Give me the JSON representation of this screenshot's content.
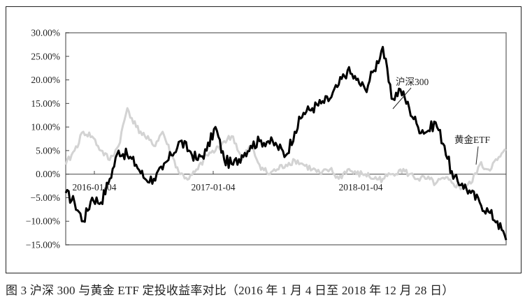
{
  "caption": "图 3  沪深 300 与黄金 ETF 定投收益率对比（2016 年 1 月 4 日至 2018 年 12 月 28 日）",
  "colors": {
    "hs300": "#000000",
    "gold_etf": "#d3d3d3",
    "axis": "#7f7f7f",
    "frame": "#222222"
  },
  "chart_data": {
    "type": "line",
    "title": "沪深 300 与黄金 ETF 定投收益率对比（2016 年 1 月 4 日至 2018 年 12 月 28 日）",
    "figure_label": "图 3",
    "xlabel": "",
    "ylabel": "",
    "ylim": [
      -0.15,
      0.3
    ],
    "yticks": [
      "30.00%",
      "25.00%",
      "20.00%",
      "15.00%",
      "10.00%",
      "5.00%",
      "0.00%",
      "-5.00%",
      "-10.00%",
      "-15.00%"
    ],
    "xticks": [
      "2016-01-04",
      "2017-01-04",
      "2018-01-04"
    ],
    "grid": false,
    "legend": "inline annotations",
    "annotations": [
      {
        "text": "沪深300",
        "series": "hs300"
      },
      {
        "text": "黄金ETF",
        "series": "gold_etf"
      }
    ],
    "x_index_note": "Approximate relative positions (0 = start, 1 = end) read off the plot",
    "x": [
      0.0,
      0.02,
      0.04,
      0.06,
      0.08,
      0.1,
      0.12,
      0.14,
      0.16,
      0.18,
      0.2,
      0.22,
      0.24,
      0.26,
      0.28,
      0.3,
      0.32,
      0.34,
      0.36,
      0.38,
      0.4,
      0.42,
      0.44,
      0.46,
      0.48,
      0.5,
      0.52,
      0.54,
      0.56,
      0.58,
      0.6,
      0.62,
      0.64,
      0.66,
      0.68,
      0.7,
      0.72,
      0.74,
      0.76,
      0.78,
      0.8,
      0.82,
      0.84,
      0.86,
      0.88,
      0.9,
      0.92,
      0.94,
      0.96,
      0.98,
      1.0
    ],
    "series": [
      {
        "name": "沪深300",
        "values": [
          -0.04,
          -0.06,
          -0.1,
          -0.05,
          -0.06,
          -0.01,
          0.05,
          0.04,
          0.02,
          -0.01,
          -0.01,
          0.01,
          0.04,
          0.07,
          0.05,
          0.03,
          0.05,
          0.1,
          0.03,
          0.02,
          0.04,
          0.06,
          0.07,
          0.07,
          0.06,
          0.04,
          0.09,
          0.13,
          0.14,
          0.15,
          0.16,
          0.19,
          0.22,
          0.2,
          0.18,
          0.22,
          0.27,
          0.16,
          0.18,
          0.14,
          0.1,
          0.09,
          0.11,
          0.06,
          -0.01,
          -0.02,
          -0.04,
          -0.06,
          -0.08,
          -0.1,
          -0.14
        ]
      },
      {
        "name": "黄金ETF",
        "values": [
          0.02,
          0.05,
          0.09,
          0.08,
          0.05,
          0.03,
          0.06,
          0.14,
          0.1,
          0.08,
          0.06,
          0.09,
          0.04,
          0.0,
          -0.01,
          0.01,
          0.04,
          0.05,
          0.07,
          0.08,
          0.03,
          0.06,
          0.02,
          0.0,
          0.01,
          0.02,
          0.03,
          0.02,
          0.01,
          0.0,
          0.01,
          -0.01,
          0.01,
          0.0,
          0.0,
          -0.01,
          -0.01,
          0.0,
          0.01,
          0.0,
          -0.01,
          -0.01,
          -0.02,
          -0.01,
          -0.02,
          -0.03,
          -0.02,
          0.02,
          0.01,
          0.03,
          0.05
        ]
      }
    ]
  }
}
